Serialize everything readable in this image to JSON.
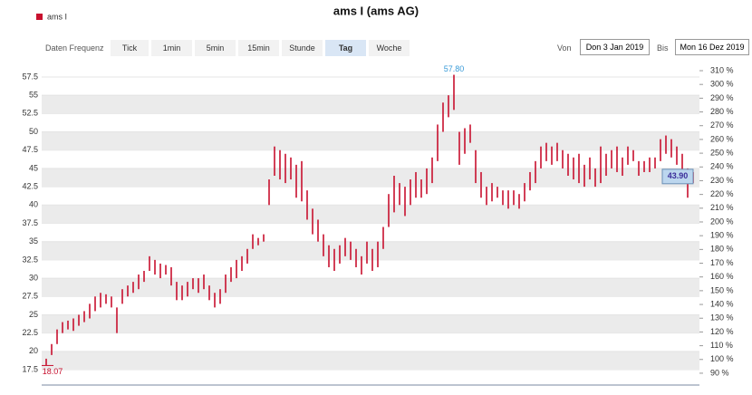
{
  "ui": {
    "frequency_label": "Daten Frequenz",
    "buttons": [
      "Tick",
      "1min",
      "5min",
      "15min",
      "Stunde",
      "Tag",
      "Woche"
    ],
    "active": "Tag",
    "from_label": "Von",
    "from": "Don 3 Jan 2019",
    "to_label": "Bis",
    "to": "Mon 16 Dez 2019"
  },
  "chart_data": {
    "type": "range_bar",
    "title": "ams I (ams AG)",
    "series": [
      {
        "name": "ams I",
        "color": "#c8102e",
        "low": [
          18.1,
          19.5,
          21.0,
          22.5,
          23.0,
          22.8,
          23.5,
          24.0,
          24.5,
          25.5,
          26.0,
          26.5,
          26.0,
          22.5,
          26.5,
          27.5,
          28.0,
          28.5,
          29.5,
          31.0,
          30.5,
          30.0,
          30.5,
          29.0,
          27.0,
          27.0,
          27.5,
          28.5,
          28.0,
          28.5,
          27.0,
          26.0,
          26.5,
          28.0,
          29.5,
          30.0,
          31.0,
          32.0,
          34.0,
          34.5,
          35.0,
          40.0,
          44.0,
          43.5,
          43.0,
          43.5,
          41.0,
          40.5,
          38.0,
          36.0,
          35.0,
          33.0,
          31.5,
          31.0,
          32.0,
          33.0,
          32.5,
          31.5,
          30.5,
          32.0,
          31.0,
          31.5,
          34.0,
          37.0,
          39.0,
          40.0,
          38.5,
          40.0,
          41.0,
          41.0,
          41.5,
          43.0,
          46.0,
          50.0,
          52.0,
          53.0,
          45.5,
          47.0,
          48.5,
          43.0,
          41.0,
          40.0,
          40.5,
          41.0,
          40.0,
          39.5,
          40.0,
          39.5,
          40.5,
          42.0,
          43.0,
          45.0,
          46.0,
          45.5,
          46.0,
          45.0,
          44.0,
          43.5,
          43.0,
          42.5,
          43.5,
          42.5,
          43.0,
          44.0,
          45.0,
          44.5,
          44.0,
          45.5,
          46.0,
          44.0,
          44.5,
          44.5,
          45.0,
          46.0,
          47.0,
          46.5,
          45.5,
          43.0,
          41.0,
          43.0
        ],
        "high": [
          19.0,
          21.0,
          23.0,
          24.0,
          24.2,
          24.5,
          25.0,
          25.5,
          26.5,
          27.5,
          28.0,
          27.8,
          27.5,
          26.0,
          28.5,
          29.0,
          29.5,
          30.5,
          31.0,
          33.0,
          32.5,
          32.0,
          31.8,
          31.5,
          29.5,
          29.0,
          29.5,
          30.0,
          30.0,
          30.5,
          29.0,
          28.0,
          28.5,
          30.5,
          31.5,
          32.5,
          33.0,
          34.0,
          36.0,
          35.5,
          36.0,
          43.5,
          48.0,
          47.5,
          47.0,
          46.5,
          45.5,
          46.0,
          42.0,
          39.5,
          38.0,
          36.0,
          34.5,
          34.0,
          34.5,
          35.5,
          35.0,
          34.0,
          33.0,
          35.0,
          34.0,
          35.0,
          37.0,
          41.5,
          44.0,
          43.0,
          42.5,
          43.5,
          44.5,
          43.5,
          45.0,
          46.5,
          51.0,
          54.0,
          55.0,
          57.8,
          50.0,
          50.5,
          51.0,
          47.5,
          44.5,
          42.5,
          43.0,
          42.5,
          42.0,
          42.0,
          42.0,
          41.5,
          43.0,
          44.5,
          46.0,
          48.0,
          48.5,
          48.0,
          48.5,
          47.5,
          47.0,
          46.5,
          47.0,
          45.5,
          46.5,
          45.0,
          48.0,
          47.0,
          47.5,
          48.0,
          46.5,
          48.0,
          47.5,
          46.0,
          46.0,
          46.5,
          46.5,
          49.0,
          49.5,
          49.0,
          48.0,
          47.0,
          45.0,
          44.5
        ]
      }
    ],
    "annotations": {
      "max": {
        "value": 57.8,
        "label": "57.80"
      },
      "min": {
        "value": 18.07,
        "label": "18.07"
      },
      "last": {
        "value": 43.9,
        "label": "43.90"
      }
    },
    "ylim": [
      15.4,
      59.6
    ],
    "yticks": [
      17.5,
      20,
      22.5,
      25,
      27.5,
      30,
      32.5,
      35,
      37.5,
      40,
      42.5,
      45,
      47.5,
      50,
      52.5,
      55,
      57.5
    ],
    "y2lim": [
      81.4,
      316.6
    ],
    "y2ticks": [
      {
        "value": 90,
        "label": "90 %"
      },
      {
        "value": 100,
        "label": "100 %"
      },
      {
        "value": 110,
        "label": "110 %"
      },
      {
        "value": 120,
        "label": "120 %"
      },
      {
        "value": 130,
        "label": "130 %"
      },
      {
        "value": 140,
        "label": "140 %"
      },
      {
        "value": 150,
        "label": "150 %"
      },
      {
        "value": 160,
        "label": "160 %"
      },
      {
        "value": 170,
        "label": "170 %"
      },
      {
        "value": 180,
        "label": "180 %"
      },
      {
        "value": 190,
        "label": "190 %"
      },
      {
        "value": 200,
        "label": "200 %"
      },
      {
        "value": 210,
        "label": "210 %"
      },
      {
        "value": 220,
        "label": "220 %"
      },
      {
        "value": 230,
        "label": "230 %"
      },
      {
        "value": 240,
        "label": "240 %"
      },
      {
        "value": 250,
        "label": "250 %"
      },
      {
        "value": 260,
        "label": "260 %"
      },
      {
        "value": 270,
        "label": "270 %"
      },
      {
        "value": 280,
        "label": "280 %"
      },
      {
        "value": 290,
        "label": "290 %"
      },
      {
        "value": 300,
        "label": "300 %"
      },
      {
        "value": 310,
        "label": "310 %"
      }
    ],
    "grid": true
  }
}
